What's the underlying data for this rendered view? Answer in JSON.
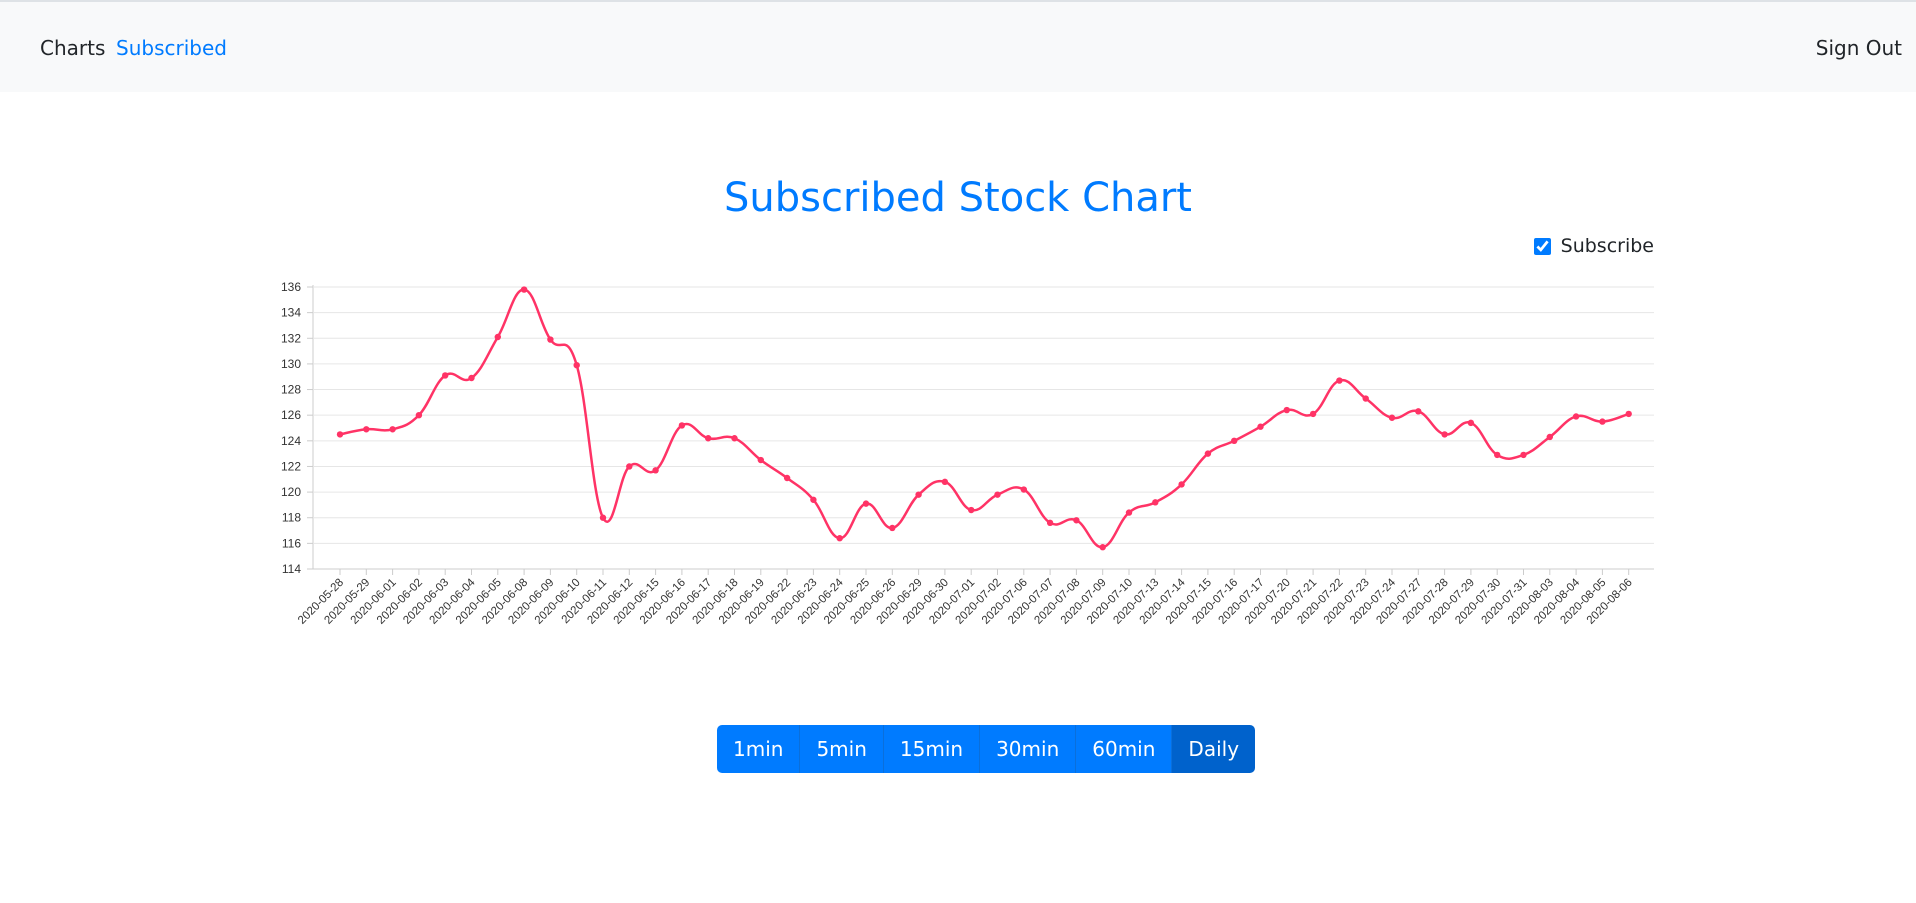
{
  "nav": {
    "charts_label": "Charts",
    "subscribed_label": "Subscribed",
    "signout_label": "Sign Out"
  },
  "page": {
    "title": "Subscribed Stock Chart",
    "subscribe_label": "Subscribe",
    "subscribe_checked": true
  },
  "intervals": [
    {
      "label": "1min",
      "active": false
    },
    {
      "label": "5min",
      "active": false
    },
    {
      "label": "15min",
      "active": false
    },
    {
      "label": "30min",
      "active": false
    },
    {
      "label": "60min",
      "active": false
    },
    {
      "label": "Daily",
      "active": true
    }
  ],
  "colors": {
    "accent": "#007bff",
    "line": "#ff3366",
    "grid": "#e6e6e6"
  },
  "chart_data": {
    "type": "line",
    "title": "",
    "xlabel": "",
    "ylabel": "",
    "ylim": [
      114,
      136
    ],
    "yticks": [
      114,
      116,
      118,
      120,
      122,
      124,
      126,
      128,
      130,
      132,
      134,
      136
    ],
    "grid": true,
    "categories": [
      "2020-05-28",
      "2020-05-29",
      "2020-06-01",
      "2020-06-02",
      "2020-06-03",
      "2020-06-04",
      "2020-06-05",
      "2020-06-08",
      "2020-06-09",
      "2020-06-10",
      "2020-06-11",
      "2020-06-12",
      "2020-06-15",
      "2020-06-16",
      "2020-06-17",
      "2020-06-18",
      "2020-06-19",
      "2020-06-22",
      "2020-06-23",
      "2020-06-24",
      "2020-06-25",
      "2020-06-26",
      "2020-06-29",
      "2020-06-30",
      "2020-07-01",
      "2020-07-02",
      "2020-07-06",
      "2020-07-07",
      "2020-07-08",
      "2020-07-09",
      "2020-07-10",
      "2020-07-13",
      "2020-07-14",
      "2020-07-15",
      "2020-07-16",
      "2020-07-17",
      "2020-07-20",
      "2020-07-21",
      "2020-07-22",
      "2020-07-23",
      "2020-07-24",
      "2020-07-27",
      "2020-07-28",
      "2020-07-29",
      "2020-07-30",
      "2020-07-31",
      "2020-08-03",
      "2020-08-04",
      "2020-08-05",
      "2020-08-06"
    ],
    "series": [
      {
        "values": [
          124.5,
          124.9,
          124.9,
          126.0,
          129.1,
          128.9,
          132.1,
          135.8,
          131.9,
          129.9,
          118.0,
          122.0,
          121.7,
          125.2,
          124.2,
          124.2,
          122.5,
          121.1,
          119.4,
          116.4,
          119.1,
          117.2,
          119.8,
          120.8,
          118.6,
          119.8,
          120.2,
          117.6,
          117.8,
          115.7,
          118.4,
          119.2,
          120.6,
          123.0,
          124.0,
          125.1,
          126.4,
          126.1,
          128.7,
          127.3,
          125.8,
          126.3,
          124.5,
          125.4,
          122.9,
          122.9,
          124.3,
          125.9,
          125.5,
          126.1
        ]
      }
    ]
  }
}
